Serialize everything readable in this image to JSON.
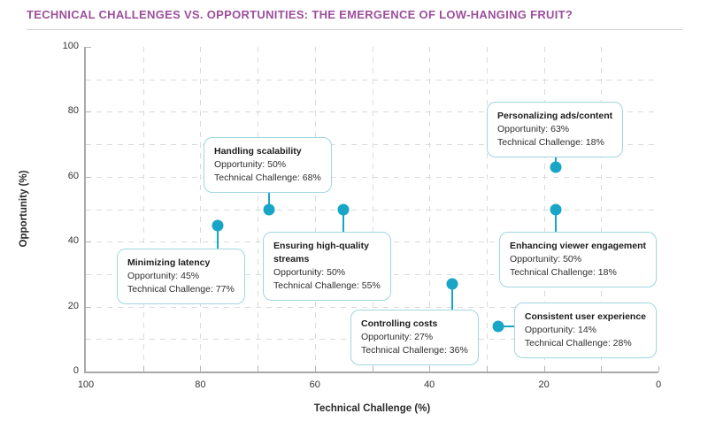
{
  "page": {
    "title": "TECHNICAL CHALLENGES VS. OPPORTUNITIES: THE EMERGENCE OF LOW-HANGING FRUIT?"
  },
  "colors": {
    "title_purple": "#9c4f9c",
    "accent_teal": "#18a5c6",
    "callout_border": "#9fd6e0",
    "grid": "#dadada",
    "axis": "#a9a9a9",
    "text": "#2a2a2a"
  },
  "chart_data": {
    "type": "scatter",
    "title": "TECHNICAL CHALLENGES VS. OPPORTUNITIES: THE EMERGENCE OF LOW-HANGING FRUIT?",
    "xlabel": "Technical Challenge (%)",
    "ylabel": "Opportunity (%)",
    "x_axis_reversed": true,
    "xlim": [
      100,
      0
    ],
    "ylim": [
      0,
      100
    ],
    "x_ticks": [
      100,
      80,
      60,
      40,
      20,
      0
    ],
    "y_ticks": [
      0,
      20,
      40,
      60,
      80,
      100
    ],
    "grid": {
      "style": "dashed",
      "interval": 10
    },
    "legend": "none",
    "points": [
      {
        "label": "Minimizing latency",
        "label_display": "Minimizing latency",
        "technical_challenge": 77,
        "opportunity": 45,
        "callout_lines": [
          "Opportunity: 45%",
          "Technical Challenge: 77%"
        ]
      },
      {
        "label": "Handling scalability",
        "label_display": "Handling scalability",
        "technical_challenge": 68,
        "opportunity": 50,
        "callout_lines": [
          "Opportunity: 50%",
          "Technical Challenge: 68%"
        ]
      },
      {
        "label": "Ensuring high-quality streams",
        "label_display": "Ensuring high-quality\nstreams",
        "technical_challenge": 55,
        "opportunity": 50,
        "callout_lines": [
          "Opportunity: 50%",
          "Technical Challenge: 55%"
        ]
      },
      {
        "label": "Controlling costs",
        "label_display": "Controlling costs",
        "technical_challenge": 36,
        "opportunity": 27,
        "callout_lines": [
          "Opportunity: 27%",
          "Technical Challenge: 36%"
        ]
      },
      {
        "label": "Personalizing ads/content",
        "label_display": "Personalizing ads/content",
        "technical_challenge": 18,
        "opportunity": 63,
        "callout_lines": [
          "Opportunity: 63%",
          "Technical Challenge: 18%"
        ]
      },
      {
        "label": "Enhancing viewer engagement",
        "label_display": "Enhancing viewer engagement",
        "technical_challenge": 18,
        "opportunity": 50,
        "callout_lines": [
          "Opportunity: 50%",
          "Technical Challenge: 18%"
        ]
      },
      {
        "label": "Consistent user experience",
        "label_display": "Consistent user experience",
        "technical_challenge": 28,
        "opportunity": 14,
        "callout_lines": [
          "Opportunity: 14%",
          "Technical Challenge: 28%"
        ]
      }
    ]
  }
}
